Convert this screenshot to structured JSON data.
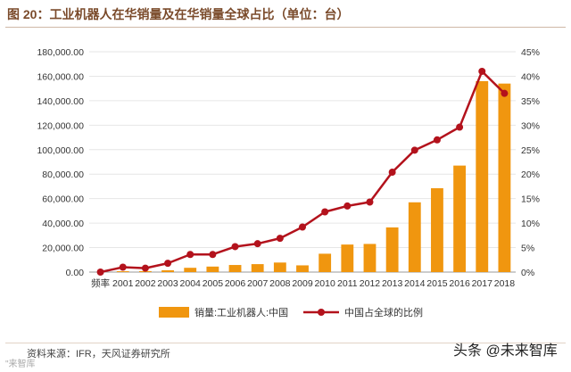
{
  "header": {
    "title": "图 20：工业机器人在华销量及在华销量全球占比（单位：台）"
  },
  "footer": {
    "source": "资料来源：IFR，天风证券研究所",
    "watermark": "头条 @未来智库",
    "watermark_small": "\"来智库"
  },
  "colors": {
    "bar": "#f0960f",
    "line": "#b3121c",
    "axis_text": "#333333",
    "grid": "#e6e6e6"
  },
  "chart_data": {
    "type": "bar+line",
    "title": "工业机器人在华销量及在华销量全球占比（单位：台）",
    "categories": [
      "频率",
      "2001",
      "2002",
      "2003",
      "2004",
      "2005",
      "2006",
      "2007",
      "2008",
      "2009",
      "2010",
      "2011",
      "2012",
      "2013",
      "2014",
      "2015",
      "2016",
      "2017",
      "2018"
    ],
    "y_left": {
      "ylim": [
        0,
        180000
      ],
      "ticks": [
        "0.00",
        "20,000.00",
        "40,000.00",
        "60,000.00",
        "80,000.00",
        "100,000.00",
        "120,000.00",
        "140,000.00",
        "160,000.00",
        "180,000.00"
      ]
    },
    "y_right": {
      "ylim": [
        0,
        45
      ],
      "ticks": [
        "0%",
        "5%",
        "10%",
        "15%",
        "20%",
        "25%",
        "30%",
        "35%",
        "40%",
        "45%"
      ]
    },
    "series": [
      {
        "name": "销量:工业机器人:中国",
        "type": "bar",
        "axis": "left",
        "values": [
          0,
          700,
          800,
          1500,
          3500,
          4500,
          5800,
          6500,
          7800,
          5500,
          15000,
          22500,
          23000,
          36500,
          57000,
          68500,
          87000,
          156000,
          154000
        ]
      },
      {
        "name": "中国占全球的比例",
        "type": "line",
        "axis": "right",
        "values": [
          0,
          1,
          0.8,
          1.8,
          3.6,
          3.6,
          5.2,
          5.8,
          6.9,
          9.2,
          12.3,
          13.5,
          14.3,
          20.4,
          24.9,
          27.0,
          29.6,
          41.0,
          36.5
        ]
      }
    ],
    "legend_position": "bottom-center"
  }
}
